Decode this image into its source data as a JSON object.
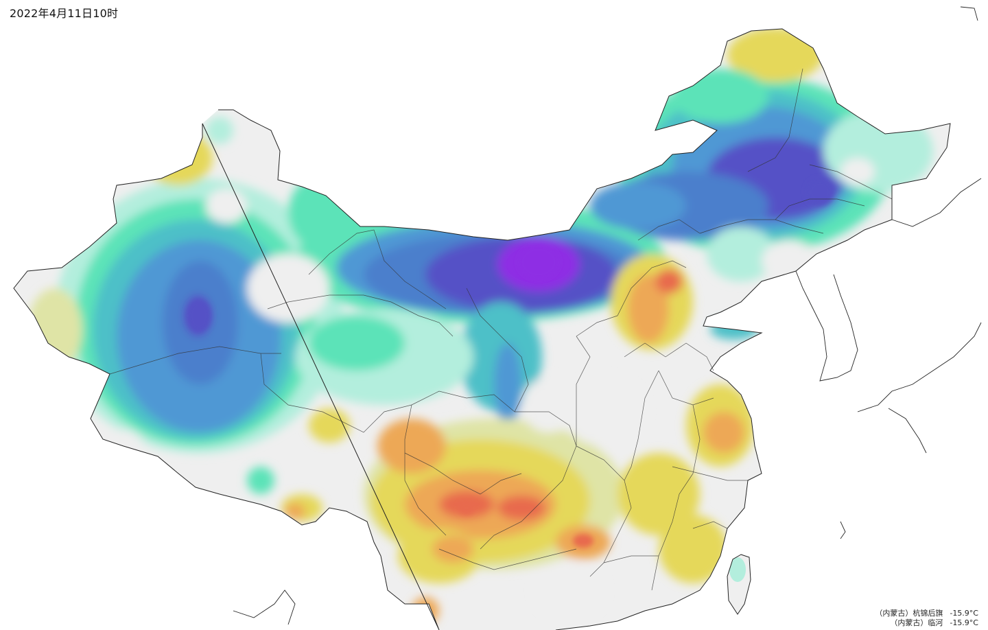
{
  "timestamp": "2022年4月11日10时",
  "min_stations": [
    {
      "label": "（内蒙古）杭锦后旗",
      "value": "-15.9°C"
    },
    {
      "label": "（内蒙古）临河",
      "value": "-15.9°C"
    }
  ],
  "colors": {
    "background": "#ffffff",
    "neutral": "#efefef",
    "mint": "#b3eedd",
    "green": "#5ce3b8",
    "teal": "#4ec0c8",
    "blue": "#4f98d4",
    "steel": "#4b7fcc",
    "indigo": "#5551c6",
    "purple": "#8e2ee4",
    "pale_yellow": "#dfe4a6",
    "yellow": "#e5d85a",
    "orange": "#eda857",
    "red": "#e86a4e",
    "border": "#222222"
  }
}
